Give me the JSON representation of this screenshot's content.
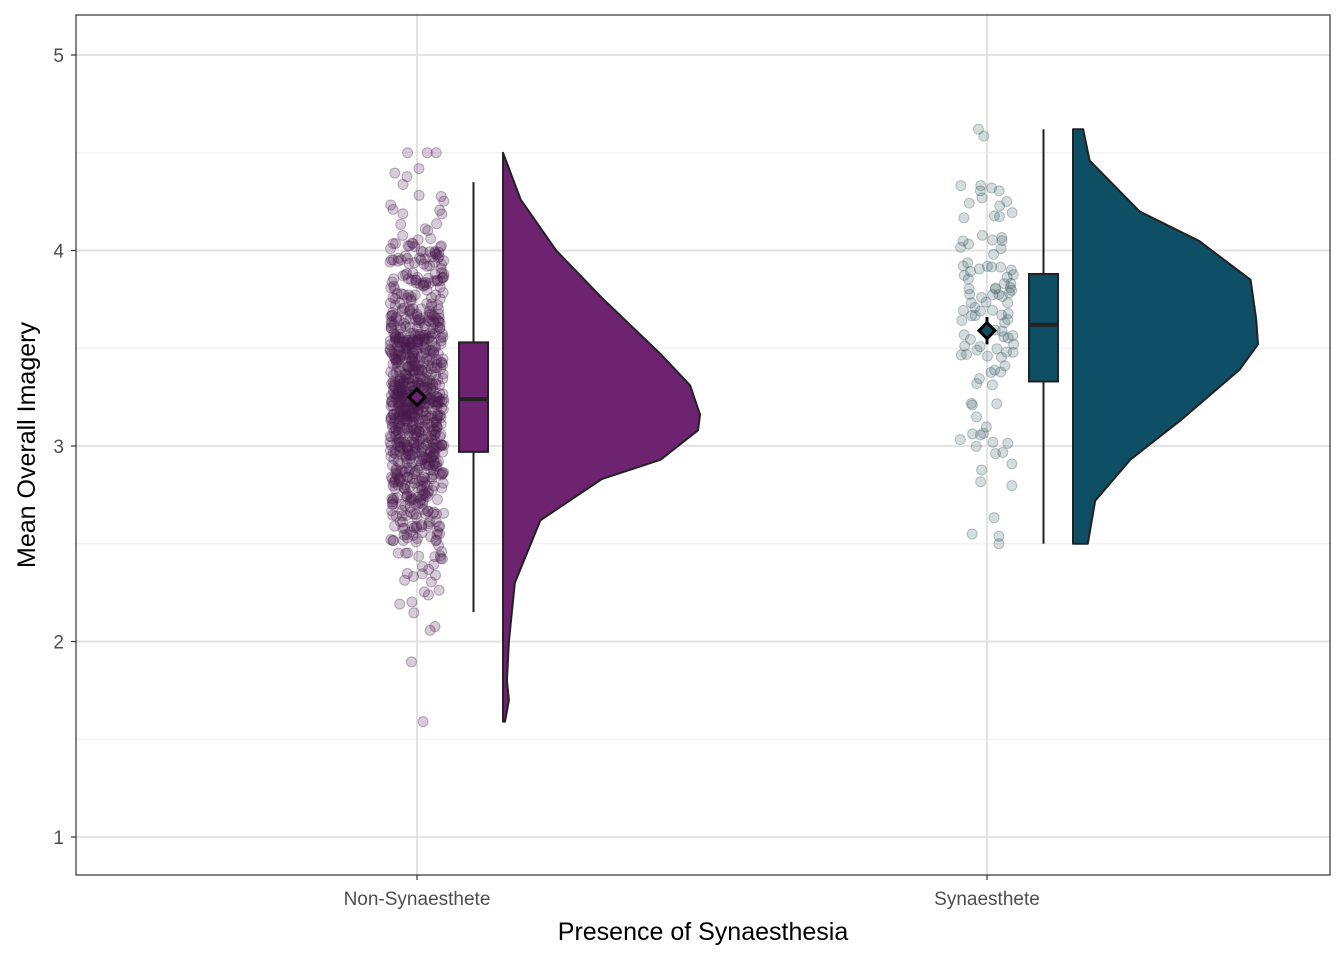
{
  "chart_data": {
    "type": "raincloud",
    "title": "",
    "xlabel": "Presence of Synaesthesia",
    "ylabel": "Mean Overall Imagery",
    "ylim": [
      0.8,
      5.2
    ],
    "yticks": [
      "1",
      "2",
      "3",
      "4",
      "5"
    ],
    "grid": true,
    "categories": [
      "Non-Synaesthete",
      "Synaesthete"
    ],
    "groups": [
      {
        "name": "Non-Synaesthete",
        "color": "#6e2370",
        "point_color": "#4a1a4e",
        "box": {
          "whisker_low": 2.15,
          "q1": 2.97,
          "median": 3.24,
          "q3": 3.53,
          "whisker_high": 4.35
        },
        "mean": 3.25,
        "mean_ci": [
          3.23,
          3.27
        ],
        "points": {
          "n": 900,
          "mean": 3.25,
          "sd": 0.42,
          "min": 1.59,
          "max": 4.5,
          "seed": 7
        },
        "density": [
          [
            1.59,
            0.01
          ],
          [
            1.7,
            0.03
          ],
          [
            1.8,
            0.02
          ],
          [
            2.0,
            0.03
          ],
          [
            2.3,
            0.06
          ],
          [
            2.62,
            0.19
          ],
          [
            2.83,
            0.5
          ],
          [
            2.93,
            0.8
          ],
          [
            3.08,
            0.99
          ],
          [
            3.16,
            1.0
          ],
          [
            3.31,
            0.95
          ],
          [
            3.47,
            0.8
          ],
          [
            3.76,
            0.5
          ],
          [
            4.0,
            0.27
          ],
          [
            4.26,
            0.09
          ],
          [
            4.5,
            0.0
          ]
        ]
      },
      {
        "name": "Synaesthete",
        "color": "#0e4f66",
        "point_color": "#3e5f66",
        "box": {
          "whisker_low": 2.5,
          "q1": 3.33,
          "median": 3.62,
          "q3": 3.88,
          "whisker_high": 4.62
        },
        "mean": 3.59,
        "mean_ci": [
          3.52,
          3.66
        ],
        "points": {
          "n": 110,
          "mean": 3.6,
          "sd": 0.42,
          "min": 2.5,
          "max": 4.62,
          "seed": 13
        },
        "density": [
          [
            2.5,
            0.08
          ],
          [
            2.72,
            0.12
          ],
          [
            2.93,
            0.31
          ],
          [
            3.13,
            0.58
          ],
          [
            3.39,
            0.9
          ],
          [
            3.52,
            1.0
          ],
          [
            3.65,
            0.99
          ],
          [
            3.85,
            0.96
          ],
          [
            4.05,
            0.68
          ],
          [
            4.2,
            0.36
          ],
          [
            4.46,
            0.09
          ],
          [
            4.62,
            0.055
          ]
        ]
      }
    ]
  }
}
